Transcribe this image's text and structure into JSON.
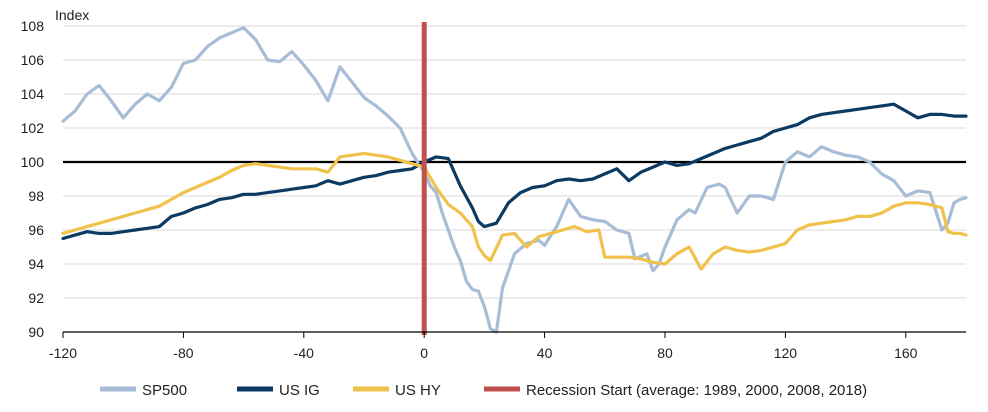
{
  "chart_data": {
    "type": "line",
    "ylabel": "Index",
    "xlim": [
      -120,
      180
    ],
    "ylim": [
      90,
      108
    ],
    "x_ticks": [
      -120,
      -80,
      -40,
      0,
      40,
      80,
      120,
      160
    ],
    "y_ticks": [
      90,
      92,
      94,
      96,
      98,
      100,
      102,
      104,
      106,
      108
    ],
    "x_tick_labels": [
      "-120",
      "-80",
      "-40",
      "0",
      "40",
      "80",
      "120",
      "160"
    ],
    "y_tick_labels": [
      "90",
      "92",
      "94",
      "96",
      "98",
      "100",
      "102",
      "104",
      "106",
      "108"
    ],
    "grid": "horizontal",
    "reference_line": {
      "y": 100,
      "color": "#000000"
    },
    "recession_marker": {
      "x": 0,
      "color": "#c0504d"
    },
    "legend_position": "bottom",
    "legend": [
      {
        "label": "SP500",
        "color": "#a7bcd6"
      },
      {
        "label": "US IG",
        "color": "#0b3a62"
      },
      {
        "label": "US HY",
        "color": "#f0c14b"
      },
      {
        "label": "Recession Start (average: 1989, 2000, 2008, 2018)",
        "color": "#c0504d"
      }
    ],
    "series": [
      {
        "name": "SP500",
        "color": "#a7bcd6",
        "points": [
          [
            -120,
            102.4
          ],
          [
            -116,
            103.0
          ],
          [
            -112,
            104.0
          ],
          [
            -108,
            104.5
          ],
          [
            -104,
            103.6
          ],
          [
            -100,
            102.6
          ],
          [
            -96,
            103.4
          ],
          [
            -92,
            104.0
          ],
          [
            -88,
            103.6
          ],
          [
            -84,
            104.4
          ],
          [
            -80,
            105.8
          ],
          [
            -76,
            106.0
          ],
          [
            -72,
            106.8
          ],
          [
            -68,
            107.3
          ],
          [
            -64,
            107.6
          ],
          [
            -60,
            107.9
          ],
          [
            -56,
            107.2
          ],
          [
            -52,
            106.0
          ],
          [
            -48,
            105.9
          ],
          [
            -44,
            106.5
          ],
          [
            -40,
            105.7
          ],
          [
            -36,
            104.8
          ],
          [
            -32,
            103.6
          ],
          [
            -28,
            105.6
          ],
          [
            -24,
            104.7
          ],
          [
            -20,
            103.8
          ],
          [
            -16,
            103.3
          ],
          [
            -12,
            102.7
          ],
          [
            -8,
            102.0
          ],
          [
            -4,
            100.5
          ],
          [
            0,
            99.4
          ],
          [
            2,
            98.6
          ],
          [
            4,
            98.2
          ],
          [
            6,
            97.0
          ],
          [
            8,
            96.0
          ],
          [
            10,
            95.0
          ],
          [
            12,
            94.2
          ],
          [
            14,
            93.0
          ],
          [
            16,
            92.5
          ],
          [
            18,
            92.4
          ],
          [
            20,
            91.5
          ],
          [
            22,
            90.2
          ],
          [
            24,
            90.0
          ],
          [
            26,
            92.6
          ],
          [
            28,
            93.6
          ],
          [
            30,
            94.6
          ],
          [
            34,
            95.2
          ],
          [
            38,
            95.4
          ],
          [
            40,
            95.1
          ],
          [
            44,
            96.2
          ],
          [
            48,
            97.8
          ],
          [
            52,
            96.8
          ],
          [
            56,
            96.6
          ],
          [
            60,
            96.5
          ],
          [
            64,
            96.0
          ],
          [
            68,
            95.8
          ],
          [
            70,
            94.3
          ],
          [
            74,
            94.6
          ],
          [
            76,
            93.6
          ],
          [
            78,
            94.0
          ],
          [
            80,
            95.0
          ],
          [
            84,
            96.6
          ],
          [
            88,
            97.2
          ],
          [
            90,
            97.0
          ],
          [
            94,
            98.5
          ],
          [
            98,
            98.7
          ],
          [
            100,
            98.5
          ],
          [
            104,
            97.0
          ],
          [
            108,
            98.0
          ],
          [
            112,
            98.0
          ],
          [
            116,
            97.8
          ],
          [
            120,
            100.0
          ],
          [
            124,
            100.6
          ],
          [
            128,
            100.3
          ],
          [
            132,
            100.9
          ],
          [
            136,
            100.6
          ],
          [
            140,
            100.4
          ],
          [
            144,
            100.3
          ],
          [
            148,
            100.0
          ],
          [
            152,
            99.3
          ],
          [
            156,
            98.9
          ],
          [
            160,
            98.0
          ],
          [
            164,
            98.3
          ],
          [
            168,
            98.2
          ],
          [
            172,
            96.0
          ],
          [
            174,
            96.4
          ],
          [
            176,
            97.6
          ],
          [
            178,
            97.8
          ],
          [
            180,
            97.9
          ]
        ]
      },
      {
        "name": "US IG",
        "color": "#0b3a62",
        "points": [
          [
            -120,
            95.5
          ],
          [
            -116,
            95.7
          ],
          [
            -112,
            95.9
          ],
          [
            -108,
            95.8
          ],
          [
            -104,
            95.8
          ],
          [
            -100,
            95.9
          ],
          [
            -96,
            96.0
          ],
          [
            -92,
            96.1
          ],
          [
            -88,
            96.2
          ],
          [
            -84,
            96.8
          ],
          [
            -80,
            97.0
          ],
          [
            -76,
            97.3
          ],
          [
            -72,
            97.5
          ],
          [
            -68,
            97.8
          ],
          [
            -64,
            97.9
          ],
          [
            -60,
            98.1
          ],
          [
            -56,
            98.1
          ],
          [
            -52,
            98.2
          ],
          [
            -48,
            98.3
          ],
          [
            -44,
            98.4
          ],
          [
            -40,
            98.5
          ],
          [
            -36,
            98.6
          ],
          [
            -32,
            98.9
          ],
          [
            -28,
            98.7
          ],
          [
            -24,
            98.9
          ],
          [
            -20,
            99.1
          ],
          [
            -16,
            99.2
          ],
          [
            -12,
            99.4
          ],
          [
            -8,
            99.5
          ],
          [
            -4,
            99.6
          ],
          [
            0,
            100.0
          ],
          [
            4,
            100.3
          ],
          [
            8,
            100.2
          ],
          [
            12,
            98.6
          ],
          [
            16,
            97.3
          ],
          [
            18,
            96.5
          ],
          [
            20,
            96.2
          ],
          [
            24,
            96.4
          ],
          [
            28,
            97.6
          ],
          [
            32,
            98.2
          ],
          [
            36,
            98.5
          ],
          [
            40,
            98.6
          ],
          [
            44,
            98.9
          ],
          [
            48,
            99.0
          ],
          [
            52,
            98.9
          ],
          [
            56,
            99.0
          ],
          [
            60,
            99.3
          ],
          [
            64,
            99.6
          ],
          [
            68,
            98.9
          ],
          [
            72,
            99.4
          ],
          [
            76,
            99.7
          ],
          [
            80,
            100.0
          ],
          [
            84,
            99.8
          ],
          [
            88,
            99.9
          ],
          [
            92,
            100.2
          ],
          [
            96,
            100.5
          ],
          [
            100,
            100.8
          ],
          [
            104,
            101.0
          ],
          [
            108,
            101.2
          ],
          [
            112,
            101.4
          ],
          [
            116,
            101.8
          ],
          [
            120,
            102.0
          ],
          [
            124,
            102.2
          ],
          [
            128,
            102.6
          ],
          [
            132,
            102.8
          ],
          [
            136,
            102.9
          ],
          [
            140,
            103.0
          ],
          [
            144,
            103.1
          ],
          [
            148,
            103.2
          ],
          [
            152,
            103.3
          ],
          [
            156,
            103.4
          ],
          [
            160,
            103.0
          ],
          [
            164,
            102.6
          ],
          [
            168,
            102.8
          ],
          [
            172,
            102.8
          ],
          [
            176,
            102.7
          ],
          [
            180,
            102.7
          ]
        ]
      },
      {
        "name": "US HY",
        "color": "#f0c14b",
        "points": [
          [
            -120,
            95.8
          ],
          [
            -116,
            96.0
          ],
          [
            -112,
            96.2
          ],
          [
            -108,
            96.4
          ],
          [
            -104,
            96.6
          ],
          [
            -100,
            96.8
          ],
          [
            -96,
            97.0
          ],
          [
            -92,
            97.2
          ],
          [
            -88,
            97.4
          ],
          [
            -84,
            97.8
          ],
          [
            -80,
            98.2
          ],
          [
            -76,
            98.5
          ],
          [
            -72,
            98.8
          ],
          [
            -68,
            99.1
          ],
          [
            -64,
            99.5
          ],
          [
            -60,
            99.8
          ],
          [
            -56,
            99.9
          ],
          [
            -52,
            99.8
          ],
          [
            -48,
            99.7
          ],
          [
            -44,
            99.6
          ],
          [
            -40,
            99.6
          ],
          [
            -36,
            99.6
          ],
          [
            -32,
            99.4
          ],
          [
            -28,
            100.3
          ],
          [
            -24,
            100.4
          ],
          [
            -20,
            100.5
          ],
          [
            -16,
            100.4
          ],
          [
            -12,
            100.3
          ],
          [
            -8,
            100.1
          ],
          [
            -4,
            99.9
          ],
          [
            0,
            99.7
          ],
          [
            4,
            98.5
          ],
          [
            8,
            97.5
          ],
          [
            12,
            97.0
          ],
          [
            16,
            96.2
          ],
          [
            18,
            95.0
          ],
          [
            20,
            94.5
          ],
          [
            22,
            94.2
          ],
          [
            26,
            95.7
          ],
          [
            30,
            95.8
          ],
          [
            34,
            95.0
          ],
          [
            38,
            95.6
          ],
          [
            42,
            95.8
          ],
          [
            46,
            96.0
          ],
          [
            50,
            96.2
          ],
          [
            54,
            95.9
          ],
          [
            58,
            96.0
          ],
          [
            60,
            94.4
          ],
          [
            64,
            94.4
          ],
          [
            68,
            94.4
          ],
          [
            72,
            94.3
          ],
          [
            76,
            94.1
          ],
          [
            80,
            94.0
          ],
          [
            84,
            94.6
          ],
          [
            88,
            95.0
          ],
          [
            92,
            93.7
          ],
          [
            96,
            94.6
          ],
          [
            100,
            95.0
          ],
          [
            104,
            94.8
          ],
          [
            108,
            94.7
          ],
          [
            112,
            94.8
          ],
          [
            116,
            95.0
          ],
          [
            120,
            95.2
          ],
          [
            124,
            96.0
          ],
          [
            128,
            96.3
          ],
          [
            132,
            96.4
          ],
          [
            136,
            96.5
          ],
          [
            140,
            96.6
          ],
          [
            144,
            96.8
          ],
          [
            148,
            96.8
          ],
          [
            152,
            97.0
          ],
          [
            156,
            97.4
          ],
          [
            160,
            97.6
          ],
          [
            164,
            97.6
          ],
          [
            168,
            97.5
          ],
          [
            172,
            97.3
          ],
          [
            174,
            95.9
          ],
          [
            176,
            95.8
          ],
          [
            178,
            95.8
          ],
          [
            180,
            95.7
          ]
        ]
      }
    ]
  }
}
